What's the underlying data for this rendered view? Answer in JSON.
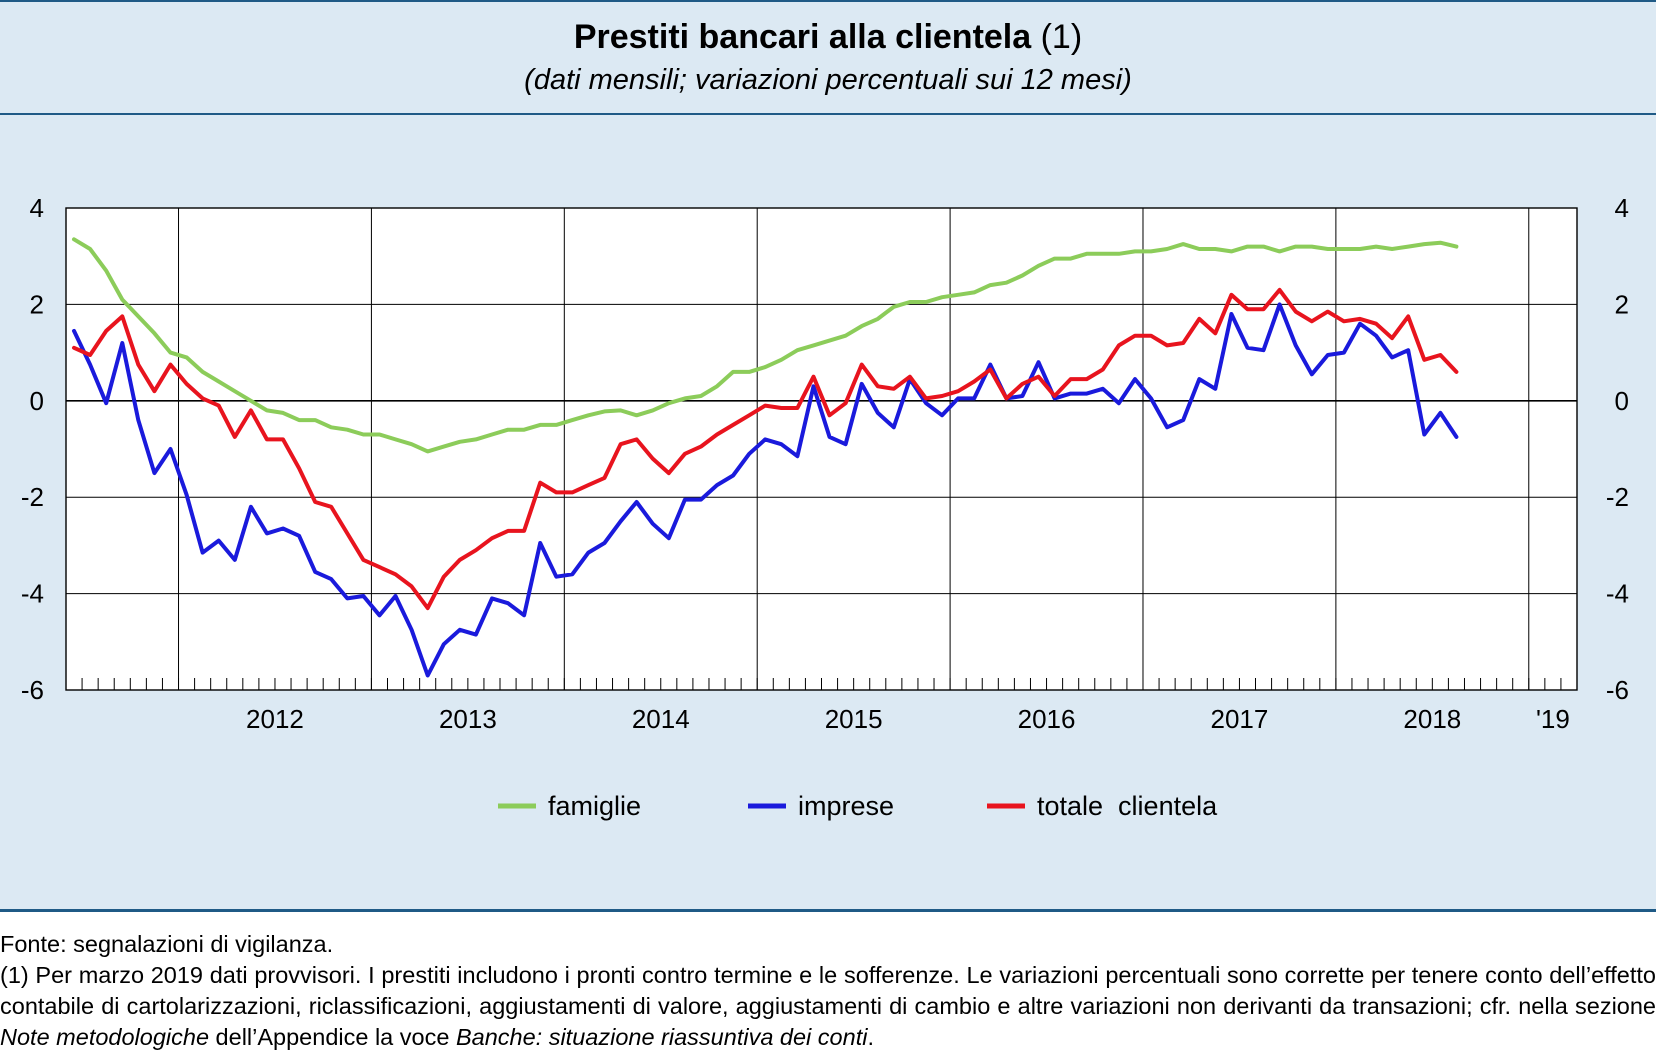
{
  "header": {
    "title": "Prestiti bancari alla clientela",
    "title_note": "(1)",
    "subtitle": "(dati mensili; variazioni percentuali sui 12 mesi)"
  },
  "colors": {
    "famiglie": "#8ccc5a",
    "imprese": "#1a1adc",
    "totale": "#e8141e"
  },
  "chart_data": {
    "type": "line",
    "ylim": [
      -6,
      4
    ],
    "yticks": [
      "4",
      "2",
      "0",
      "-2",
      "-4",
      "-6"
    ],
    "x_start_month": "2011-06",
    "x_end_month": "2019-03",
    "year_labels": [
      "2012",
      "2013",
      "2014",
      "2015",
      "2016",
      "2017",
      "2018",
      "'19"
    ],
    "legend": [
      "famiglie",
      "imprese",
      "totale  clientela"
    ],
    "series": [
      {
        "name": "famiglie",
        "values": [
          3.35,
          3.15,
          2.7,
          2.1,
          1.75,
          1.4,
          1.0,
          0.9,
          0.6,
          0.4,
          0.2,
          0.0,
          -0.2,
          -0.25,
          -0.4,
          -0.4,
          -0.55,
          -0.6,
          -0.7,
          -0.7,
          -0.8,
          -0.9,
          -1.05,
          -0.95,
          -0.85,
          -0.8,
          -0.7,
          -0.6,
          -0.6,
          -0.5,
          -0.5,
          -0.4,
          -0.3,
          -0.22,
          -0.2,
          -0.3,
          -0.2,
          -0.05,
          0.05,
          0.1,
          0.3,
          0.6,
          0.6,
          0.7,
          0.85,
          1.05,
          1.15,
          1.25,
          1.35,
          1.55,
          1.7,
          1.95,
          2.05,
          2.05,
          2.15,
          2.2,
          2.25,
          2.4,
          2.45,
          2.6,
          2.8,
          2.95,
          2.95,
          3.05,
          3.05,
          3.05,
          3.1,
          3.1,
          3.15,
          3.25,
          3.15,
          3.15,
          3.1,
          3.2,
          3.2,
          3.1,
          3.2,
          3.2,
          3.15,
          3.15,
          3.15,
          3.2,
          3.15,
          3.2,
          3.25,
          3.28,
          3.2
        ]
      },
      {
        "name": "imprese",
        "values": [
          1.45,
          0.75,
          -0.05,
          1.2,
          -0.4,
          -1.5,
          -1.0,
          -1.95,
          -3.15,
          -2.9,
          -3.3,
          -2.2,
          -2.75,
          -2.65,
          -2.8,
          -3.55,
          -3.7,
          -4.1,
          -4.05,
          -4.45,
          -4.05,
          -4.75,
          -5.7,
          -5.05,
          -4.75,
          -4.85,
          -4.1,
          -4.2,
          -4.45,
          -2.95,
          -3.65,
          -3.6,
          -3.15,
          -2.95,
          -2.5,
          -2.1,
          -2.55,
          -2.85,
          -2.05,
          -2.05,
          -1.75,
          -1.55,
          -1.1,
          -0.8,
          -0.9,
          -1.15,
          0.3,
          -0.75,
          -0.9,
          0.35,
          -0.25,
          -0.55,
          0.45,
          -0.05,
          -0.3,
          0.05,
          0.05,
          0.75,
          0.05,
          0.1,
          0.8,
          0.05,
          0.15,
          0.15,
          0.25,
          -0.05,
          0.45,
          0.05,
          -0.55,
          -0.4,
          0.45,
          0.25,
          1.8,
          1.1,
          1.05,
          2.0,
          1.15,
          0.55,
          0.95,
          1.0,
          1.6,
          1.35,
          0.9,
          1.05,
          -0.7,
          -0.25,
          -0.75
        ]
      },
      {
        "name": "totale  clientela",
        "values": [
          1.1,
          0.95,
          1.45,
          1.75,
          0.75,
          0.2,
          0.75,
          0.35,
          0.05,
          -0.1,
          -0.75,
          -0.2,
          -0.8,
          -0.8,
          -1.4,
          -2.1,
          -2.2,
          -2.75,
          -3.3,
          -3.45,
          -3.6,
          -3.85,
          -4.3,
          -3.65,
          -3.3,
          -3.1,
          -2.85,
          -2.7,
          -2.7,
          -1.7,
          -1.9,
          -1.9,
          -1.75,
          -1.6,
          -0.9,
          -0.8,
          -1.2,
          -1.5,
          -1.1,
          -0.95,
          -0.7,
          -0.5,
          -0.3,
          -0.1,
          -0.15,
          -0.15,
          0.5,
          -0.3,
          -0.05,
          0.75,
          0.3,
          0.25,
          0.5,
          0.05,
          0.1,
          0.2,
          0.4,
          0.65,
          0.05,
          0.35,
          0.5,
          0.1,
          0.45,
          0.45,
          0.65,
          1.15,
          1.35,
          1.35,
          1.15,
          1.2,
          1.7,
          1.4,
          2.2,
          1.9,
          1.9,
          2.3,
          1.85,
          1.65,
          1.85,
          1.65,
          1.7,
          1.6,
          1.3,
          1.75,
          0.85,
          0.95,
          0.6
        ]
      }
    ]
  },
  "notes": {
    "source": "Fonte: segnalazioni di vigilanza.",
    "footnote_a": "(1) Per marzo 2019 dati provvisori. I prestiti includono i pronti contro termine e le sofferenze. Le variazioni percentuali sono corrette per tenere conto dell’effetto contabile di cartolarizzazioni, riclassificazioni, aggiustamenti di valore, aggiustamenti di cambio e altre variazioni non derivanti da transazioni; cfr. nella sezione ",
    "footnote_b": "Note metodologiche",
    "footnote_c": " dell’Appendice la voce ",
    "footnote_d": "Banche: situazione riassuntiva dei conti",
    "footnote_e": "."
  }
}
